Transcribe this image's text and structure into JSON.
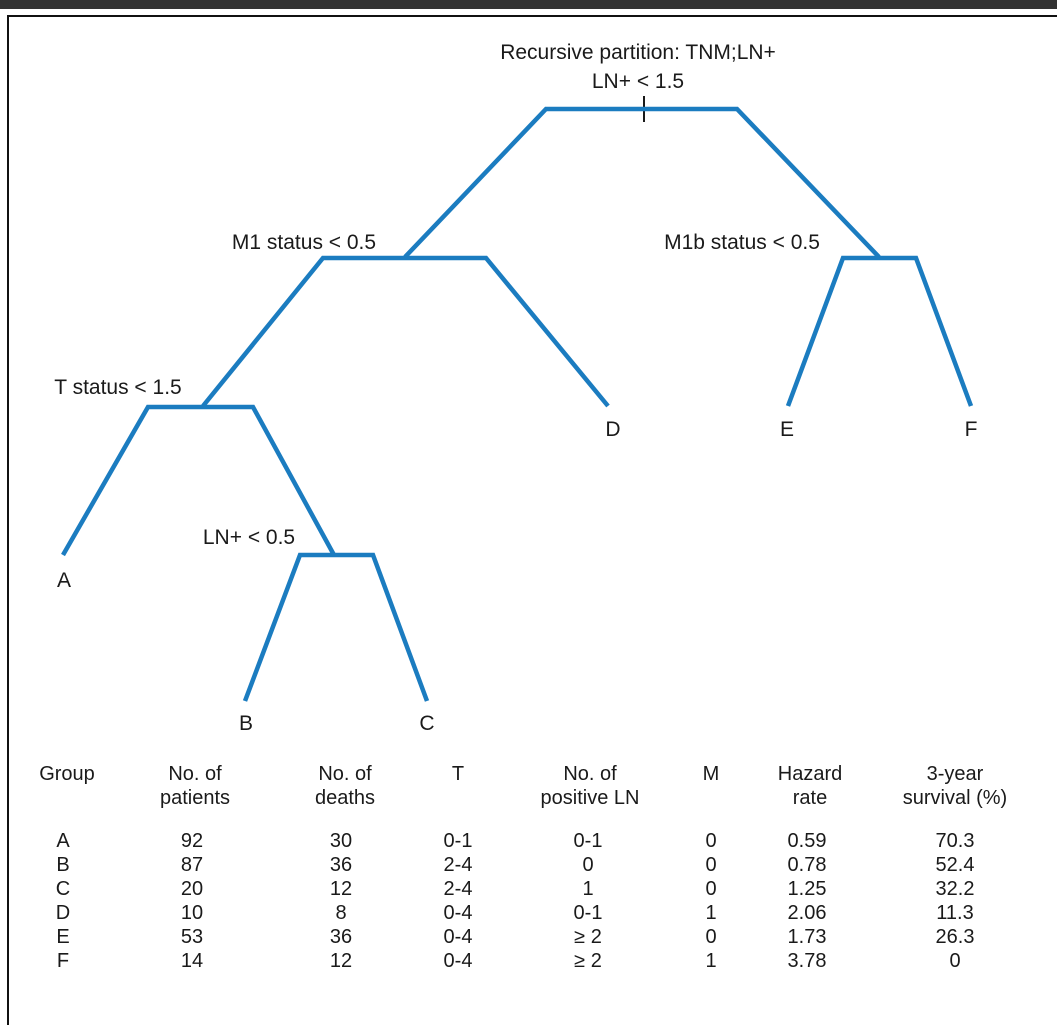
{
  "diagram": {
    "title": "Recursive partition: TNM;LN+",
    "splits": {
      "root": "LN+ < 1.5",
      "m1": "M1 status < 0.5",
      "m1b": "M1b status < 0.5",
      "t": "T status < 1.5",
      "ln": "LN+ < 0.5"
    },
    "leaves": [
      "A",
      "B",
      "C",
      "D",
      "E",
      "F"
    ],
    "branch_color": "#1b7cc0"
  },
  "table": {
    "headers": [
      [
        "Group"
      ],
      [
        "No. of",
        "patients"
      ],
      [
        "No. of",
        "deaths"
      ],
      [
        "T"
      ],
      [
        "No. of",
        "positive LN"
      ],
      [
        "M"
      ],
      [
        "Hazard",
        "rate"
      ],
      [
        "3-year",
        "survival (%)"
      ]
    ],
    "rows": [
      [
        "A",
        "92",
        "30",
        "0-1",
        "0-1",
        "0",
        "0.59",
        "70.3"
      ],
      [
        "B",
        "87",
        "36",
        "2-4",
        "0",
        "0",
        "0.78",
        "52.4"
      ],
      [
        "C",
        "20",
        "12",
        "2-4",
        "1",
        "0",
        "1.25",
        "32.2"
      ],
      [
        "D",
        "10",
        "8",
        "0-4",
        "0-1",
        "1",
        "2.06",
        "11.3"
      ],
      [
        "E",
        "53",
        "36",
        "0-4",
        "≥ 2",
        "0",
        "1.73",
        "26.3"
      ],
      [
        "F",
        "14",
        "12",
        "0-4",
        "≥ 2",
        "1",
        "3.78",
        "0"
      ]
    ]
  }
}
